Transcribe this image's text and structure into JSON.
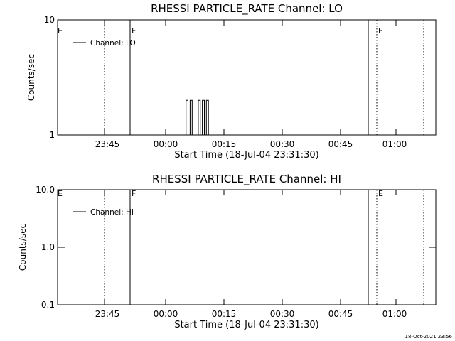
{
  "footer": {
    "timestamp": "18-Oct-2021 23:56"
  },
  "chart_data": [
    {
      "type": "line",
      "title": "RHESSI PARTICLE_RATE Channel: LO",
      "xlabel": "Start Time (18-Jul-04 23:31:30)",
      "ylabel": "Counts/sec",
      "yscale": "log",
      "ylim": [
        1,
        10
      ],
      "xlim_minutes_after_start": [
        0,
        100
      ],
      "xtick_labels": [
        "23:45",
        "00:00",
        "00:15",
        "00:30",
        "00:45",
        "01:00"
      ],
      "ytick_labels": [
        "1",
        "10"
      ],
      "legend": {
        "label": "Channel: LO",
        "placement": "top-left"
      },
      "markers": {
        "solid": [
          {
            "time": "23:40",
            "label": "F"
          },
          {
            "time": "00:53",
            "label": ""
          }
        ],
        "dotted": [
          {
            "time": "23:44"
          },
          {
            "time": "00:55",
            "label": "E"
          },
          {
            "time": "01:07"
          }
        ],
        "edge_labels": [
          "E"
        ]
      },
      "series": [
        {
          "name": "Channel: LO",
          "x": [
            "00:03:40",
            "00:05:00",
            "00:05:00",
            "00:05:30",
            "00:05:30",
            "00:06:00",
            "00:06:00",
            "00:06:30",
            "00:06:30",
            "00:08:00",
            "00:08:00",
            "00:08:30",
            "00:08:30",
            "00:09:00",
            "00:09:00",
            "00:09:30",
            "00:09:30",
            "00:10:00",
            "00:10:00",
            "00:10:30",
            "00:10:30",
            "00:11:00"
          ],
          "y": [
            1,
            1,
            2,
            2,
            1,
            1,
            2,
            2,
            1,
            1,
            2,
            2,
            1,
            1,
            2,
            2,
            1,
            1,
            2,
            2,
            1,
            1
          ]
        }
      ]
    },
    {
      "type": "line",
      "title": "RHESSI PARTICLE_RATE Channel: HI",
      "xlabel": "Start Time (18-Jul-04 23:31:30)",
      "ylabel": "Counts/sec",
      "yscale": "log",
      "ylim": [
        0.1,
        10
      ],
      "xtick_labels": [
        "23:45",
        "00:00",
        "00:15",
        "00:30",
        "00:45",
        "01:00"
      ],
      "ytick_labels": [
        "0.1",
        "1.0",
        "10.0"
      ],
      "legend": {
        "label": "Channel: HI",
        "placement": "top-left"
      },
      "markers": {
        "solid": [
          {
            "time": "23:40",
            "label": "F"
          },
          {
            "time": "00:53",
            "label": ""
          }
        ],
        "dotted": [
          {
            "time": "23:44"
          },
          {
            "time": "00:55",
            "label": "E"
          },
          {
            "time": "01:07"
          }
        ],
        "edge_labels": [
          "E"
        ]
      },
      "series": [
        {
          "name": "Channel: HI",
          "x": [],
          "y": []
        }
      ]
    }
  ]
}
